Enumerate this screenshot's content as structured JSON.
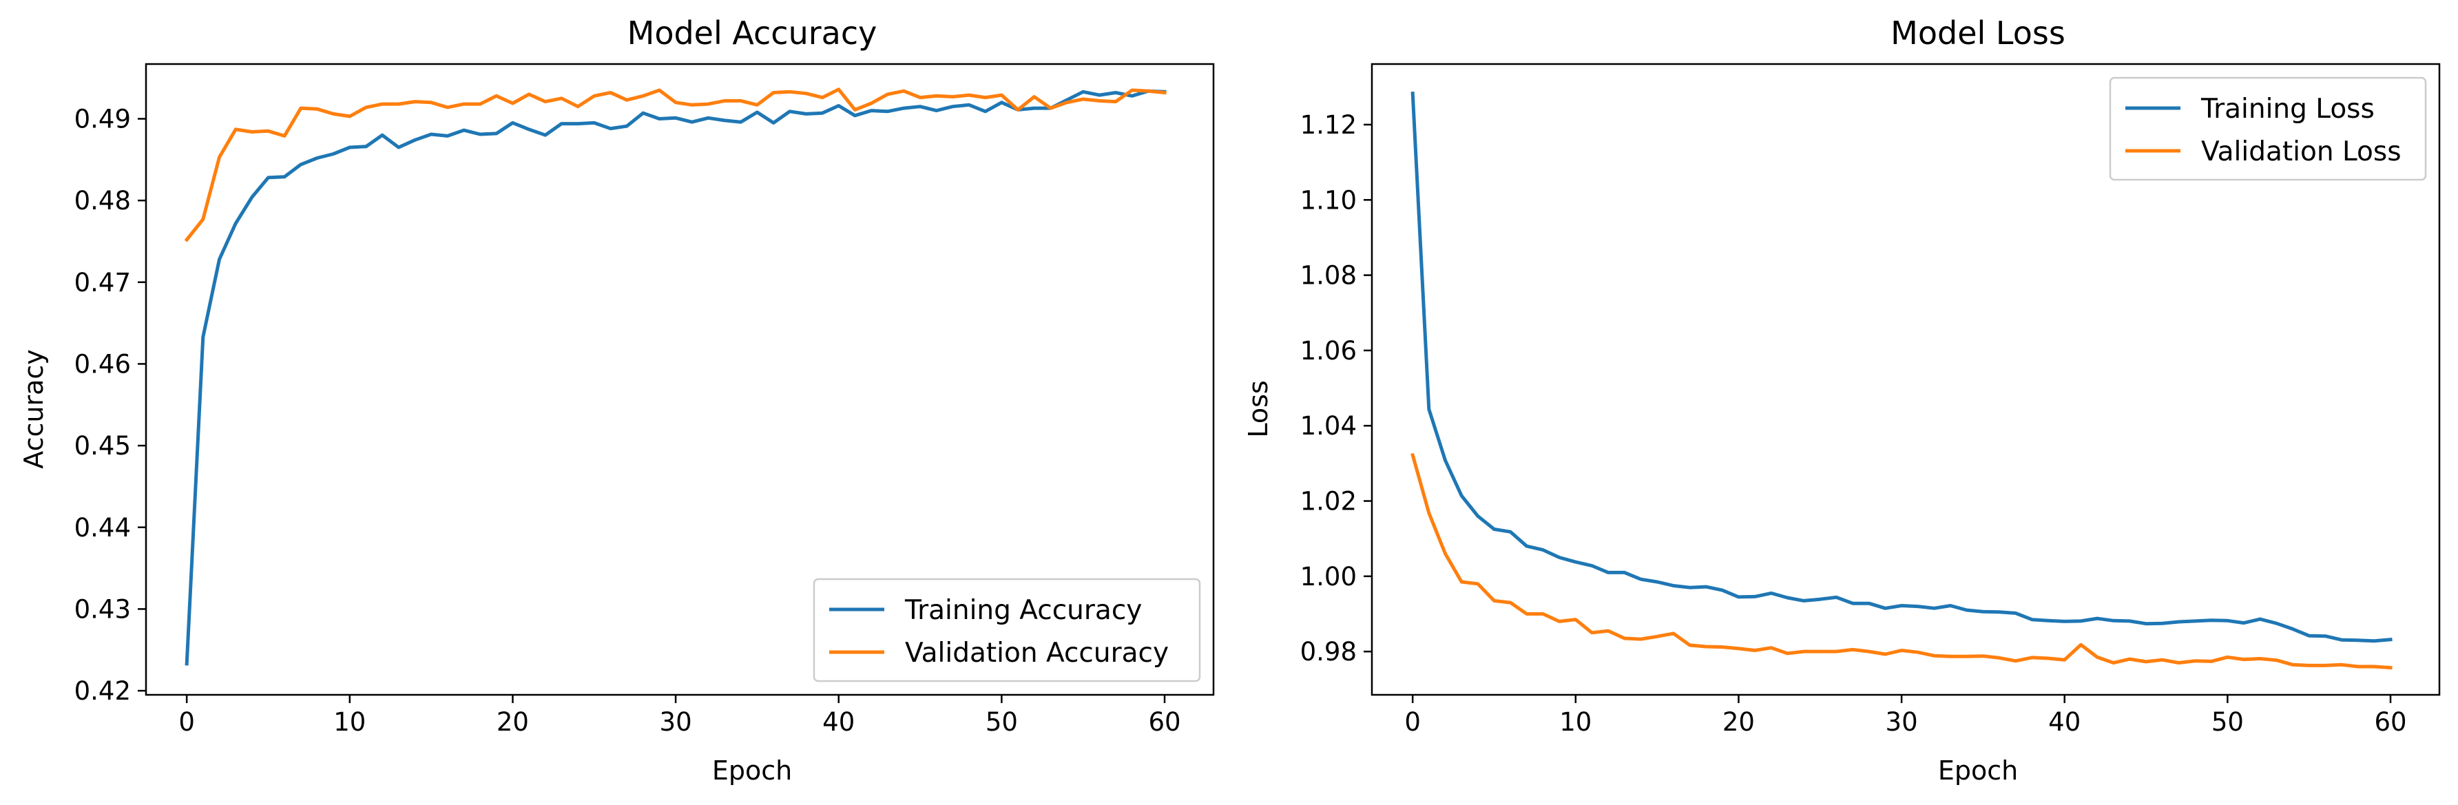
{
  "chart_data": [
    {
      "type": "line",
      "title": "Model Accuracy",
      "xlabel": "Epoch",
      "ylabel": "Accuracy",
      "xlim": [
        -2.5,
        63
      ],
      "ylim": [
        0.4195,
        0.4967
      ],
      "xticks": [
        0,
        10,
        20,
        30,
        40,
        50,
        60
      ],
      "yticks": [
        0.42,
        0.43,
        0.44,
        0.45,
        0.46,
        0.47,
        0.48,
        0.49
      ],
      "ytick_decimals": 2,
      "legend": "lower right",
      "grid": false,
      "series": [
        {
          "name": "Training Accuracy",
          "color": "#1f77b4",
          "values": [
            0.4233,
            0.4633,
            0.4728,
            0.4772,
            0.4804,
            0.4828,
            0.4829,
            0.4844,
            0.4852,
            0.4857,
            0.4865,
            0.4866,
            0.488,
            0.4865,
            0.4874,
            0.4881,
            0.4879,
            0.4886,
            0.4881,
            0.4882,
            0.4895,
            0.4887,
            0.488,
            0.4894,
            0.4894,
            0.4895,
            0.4888,
            0.4891,
            0.4907,
            0.49,
            0.4901,
            0.4896,
            0.4901,
            0.4898,
            0.4896,
            0.4908,
            0.4895,
            0.4909,
            0.4906,
            0.4907,
            0.4916,
            0.4904,
            0.491,
            0.4909,
            0.4913,
            0.4915,
            0.491,
            0.4915,
            0.4917,
            0.4909,
            0.492,
            0.4911,
            0.4913,
            0.4913,
            0.4923,
            0.4933,
            0.4929,
            0.4932,
            0.4928,
            0.4934,
            0.4933
          ]
        },
        {
          "name": "Validation Accuracy",
          "color": "#ff7f0e",
          "values": [
            0.4752,
            0.4777,
            0.4853,
            0.4887,
            0.4884,
            0.4885,
            0.4879,
            0.4913,
            0.4912,
            0.4906,
            0.4903,
            0.4914,
            0.4918,
            0.4918,
            0.4921,
            0.492,
            0.4914,
            0.4918,
            0.4918,
            0.4928,
            0.4919,
            0.493,
            0.4921,
            0.4925,
            0.4915,
            0.4928,
            0.4932,
            0.4923,
            0.4928,
            0.4935,
            0.492,
            0.4917,
            0.4918,
            0.4922,
            0.4922,
            0.4917,
            0.4932,
            0.4933,
            0.4931,
            0.4926,
            0.4936,
            0.4911,
            0.4919,
            0.493,
            0.4934,
            0.4926,
            0.4928,
            0.4927,
            0.4929,
            0.4926,
            0.4929,
            0.4911,
            0.4927,
            0.4913,
            0.492,
            0.4924,
            0.4922,
            0.4921,
            0.4935,
            0.4934,
            0.4932
          ]
        }
      ]
    },
    {
      "type": "line",
      "title": "Model Loss",
      "xlabel": "Epoch",
      "ylabel": "Loss",
      "xlim": [
        -2.5,
        63
      ],
      "ylim": [
        0.9685,
        1.1361
      ],
      "xticks": [
        0,
        10,
        20,
        30,
        40,
        50,
        60
      ],
      "yticks": [
        0.98,
        1.0,
        1.02,
        1.04,
        1.06,
        1.08,
        1.1,
        1.12
      ],
      "ytick_decimals": 2,
      "legend": "upper right",
      "grid": false,
      "series": [
        {
          "name": "Training Loss",
          "color": "#1f77b4",
          "values": [
            1.1283,
            1.0444,
            1.0308,
            1.0214,
            1.016,
            1.0125,
            1.0118,
            1.008,
            1.007,
            1.005,
            1.0038,
            1.0028,
            1.001,
            1.001,
            0.9992,
            0.9985,
            0.9975,
            0.997,
            0.9972,
            0.9963,
            0.9945,
            0.9946,
            0.9955,
            0.9943,
            0.9935,
            0.9939,
            0.9944,
            0.9928,
            0.9928,
            0.9915,
            0.9922,
            0.992,
            0.9915,
            0.9922,
            0.991,
            0.9906,
            0.9905,
            0.9902,
            0.9885,
            0.9882,
            0.988,
            0.9881,
            0.9888,
            0.9882,
            0.9881,
            0.9874,
            0.9875,
            0.9879,
            0.9881,
            0.9883,
            0.9882,
            0.9876,
            0.9886,
            0.9875,
            0.986,
            0.9842,
            0.9841,
            0.9831,
            0.983,
            0.9828,
            0.9832
          ]
        },
        {
          "name": "Validation Loss",
          "color": "#ff7f0e",
          "values": [
            1.0322,
            1.0168,
            1.006,
            0.9985,
            0.998,
            0.9935,
            0.993,
            0.99,
            0.99,
            0.988,
            0.9885,
            0.985,
            0.9855,
            0.9835,
            0.9833,
            0.984,
            0.9848,
            0.9817,
            0.9813,
            0.9812,
            0.9808,
            0.9803,
            0.981,
            0.9795,
            0.98,
            0.98,
            0.98,
            0.9805,
            0.98,
            0.9793,
            0.9803,
            0.9798,
            0.9789,
            0.9787,
            0.9787,
            0.9788,
            0.9783,
            0.9775,
            0.9784,
            0.9782,
            0.9778,
            0.9818,
            0.9785,
            0.977,
            0.978,
            0.9773,
            0.9778,
            0.977,
            0.9775,
            0.9774,
            0.9785,
            0.9779,
            0.9781,
            0.9777,
            0.9765,
            0.9763,
            0.9763,
            0.9765,
            0.976,
            0.976,
            0.9757
          ]
        }
      ]
    }
  ]
}
